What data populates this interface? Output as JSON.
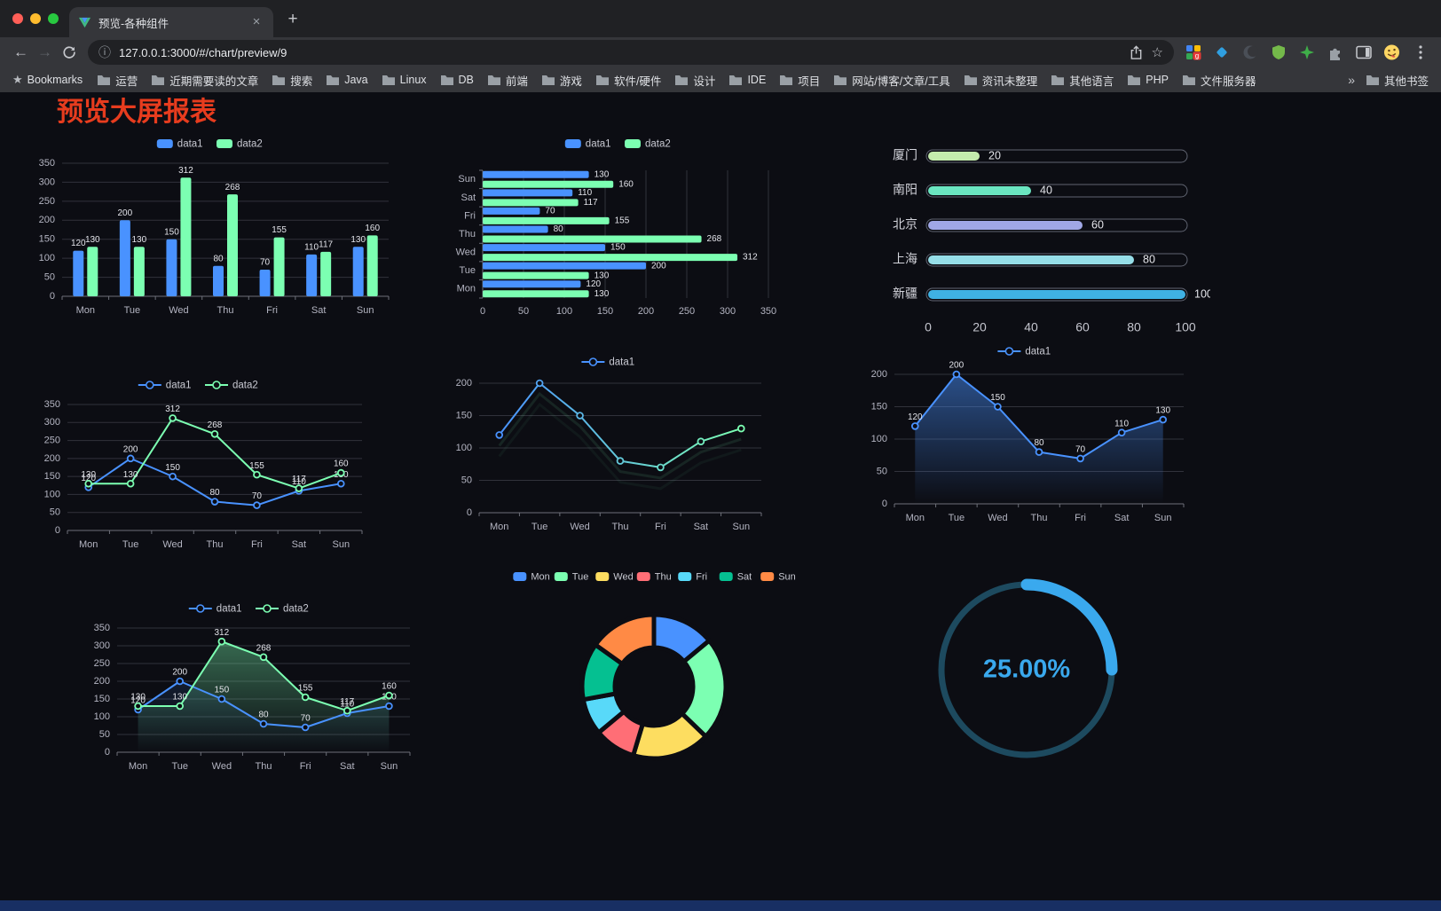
{
  "browser": {
    "tab": {
      "title": "预览-各种组件"
    },
    "address": {
      "url": "127.0.0.1:3000/#/chart/preview/9"
    },
    "icons": {
      "back": "←",
      "forward": "→",
      "info": "ⓘ",
      "star": "☆",
      "close_tab": "×",
      "new_tab": "+",
      "bookmarks_star": "★",
      "overflow": "»"
    },
    "bookmarks": {
      "label": "Bookmarks",
      "items": [
        "运营",
        "近期需要读的文章",
        "搜索",
        "Java",
        "Linux",
        "DB",
        "前端",
        "游戏",
        "软件/硬件",
        "设计",
        "IDE",
        "项目",
        "网站/博客/文章/工具",
        "资讯未整理",
        "其他语言",
        "PHP",
        "文件服务器"
      ],
      "overflow": "»",
      "other": "其他书签"
    }
  },
  "page": {
    "title": "预览大屏报表"
  },
  "colors": {
    "palette": [
      "#4992ff",
      "#7cffb2",
      "#fddd60",
      "#ff6e76",
      "#58d9f9",
      "#05c091",
      "#ff8a45"
    ],
    "title_red": "#e73c1e",
    "background": "#0c0d13"
  },
  "chart_data": [
    {
      "id": "bar-vertical",
      "type": "bar",
      "legend": [
        "data1",
        "data2"
      ],
      "categories": [
        "Mon",
        "Tue",
        "Wed",
        "Thu",
        "Fri",
        "Sat",
        "Sun"
      ],
      "series": [
        {
          "name": "data1",
          "color": "#4992ff",
          "values": [
            120,
            200,
            150,
            80,
            70,
            110,
            130
          ]
        },
        {
          "name": "data2",
          "color": "#7cffb2",
          "values": [
            130,
            130,
            312,
            268,
            155,
            117,
            160
          ]
        }
      ],
      "ylim": [
        0,
        350
      ],
      "yticks": [
        0,
        50,
        100,
        150,
        200,
        250,
        300,
        350
      ],
      "value_labels": true
    },
    {
      "id": "bar-horizontal",
      "type": "hbar",
      "legend": [
        "data1",
        "data2"
      ],
      "categories": [
        "Mon",
        "Tue",
        "Wed",
        "Thu",
        "Fri",
        "Sat",
        "Sun"
      ],
      "series": [
        {
          "name": "data1",
          "color": "#4992ff",
          "values": [
            120,
            200,
            150,
            80,
            70,
            110,
            130
          ]
        },
        {
          "name": "data2",
          "color": "#7cffb2",
          "values": [
            130,
            130,
            312,
            268,
            155,
            117,
            160
          ]
        }
      ],
      "xlim": [
        0,
        350
      ],
      "xticks": [
        0,
        50,
        100,
        150,
        200,
        250,
        300,
        350
      ],
      "value_labels": true
    },
    {
      "id": "capsule-bars",
      "type": "capsule",
      "rows": [
        {
          "label": "厦门",
          "value": 20,
          "color": "#c4ebad"
        },
        {
          "label": "南阳",
          "value": 40,
          "color": "#6be6c1"
        },
        {
          "label": "北京",
          "value": 60,
          "color": "#a0a7e6"
        },
        {
          "label": "上海",
          "value": 80,
          "color": "#96dee8"
        },
        {
          "label": "新疆",
          "value": 100,
          "color": "#3fb1e3"
        }
      ],
      "xlim": [
        0,
        100
      ],
      "xticks": [
        0,
        20,
        40,
        60,
        80,
        100
      ]
    },
    {
      "id": "line-two-series",
      "type": "line",
      "legend": [
        "data1",
        "data2"
      ],
      "categories": [
        "Mon",
        "Tue",
        "Wed",
        "Thu",
        "Fri",
        "Sat",
        "Sun"
      ],
      "series": [
        {
          "name": "data1",
          "color": "#4992ff",
          "values": [
            120,
            200,
            150,
            80,
            70,
            110,
            130
          ]
        },
        {
          "name": "data2",
          "color": "#7cffb2",
          "values": [
            130,
            130,
            312,
            268,
            155,
            117,
            160
          ]
        }
      ],
      "ylim": [
        0,
        350
      ],
      "yticks": [
        0,
        50,
        100,
        150,
        200,
        250,
        300,
        350
      ],
      "value_labels": true
    },
    {
      "id": "line-gradient",
      "type": "line",
      "legend": [
        "data1"
      ],
      "categories": [
        "Mon",
        "Tue",
        "Wed",
        "Thu",
        "Fri",
        "Sat",
        "Sun"
      ],
      "series": [
        {
          "name": "data1",
          "gradient": [
            "#4992ff",
            "#7cffb2"
          ],
          "values": [
            120,
            200,
            150,
            80,
            70,
            110,
            130
          ]
        }
      ],
      "ylim": [
        0,
        200
      ],
      "yticks": [
        0,
        50,
        100,
        150,
        200
      ],
      "value_labels": false
    },
    {
      "id": "line-area",
      "type": "line",
      "legend": [
        "data1"
      ],
      "categories": [
        "Mon",
        "Tue",
        "Wed",
        "Thu",
        "Fri",
        "Sat",
        "Sun"
      ],
      "series": [
        {
          "name": "data1",
          "color": "#4992ff",
          "values": [
            120,
            200,
            150,
            80,
            70,
            110,
            130
          ],
          "area": 0.5
        }
      ],
      "ylim": [
        0,
        200
      ],
      "yticks": [
        0,
        50,
        100,
        150,
        200
      ],
      "value_labels": true
    },
    {
      "id": "line-two-area",
      "type": "line",
      "legend": [
        "data1",
        "data2"
      ],
      "categories": [
        "Mon",
        "Tue",
        "Wed",
        "Thu",
        "Fri",
        "Sat",
        "Sun"
      ],
      "series": [
        {
          "name": "data1",
          "color": "#4992ff",
          "values": [
            120,
            200,
            150,
            80,
            70,
            110,
            130
          ],
          "area": 0.12
        },
        {
          "name": "data2",
          "color": "#7cffb2",
          "values": [
            130,
            130,
            312,
            268,
            155,
            117,
            160
          ],
          "area": 0.38
        }
      ],
      "ylim": [
        0,
        350
      ],
      "yticks": [
        0,
        50,
        100,
        150,
        200,
        250,
        300,
        350
      ],
      "value_labels": true
    },
    {
      "id": "donut",
      "type": "donut",
      "legend": [
        "Mon",
        "Tue",
        "Wed",
        "Thu",
        "Fri",
        "Sat",
        "Sun"
      ],
      "values": [
        120,
        200,
        150,
        80,
        70,
        110,
        130
      ],
      "colors": [
        "#4992ff",
        "#7cffb2",
        "#fddd60",
        "#ff6e76",
        "#58d9f9",
        "#05c091",
        "#ff8a45"
      ]
    },
    {
      "id": "gauge",
      "type": "gauge",
      "value": 25,
      "display": "25.00%",
      "color": "#3aa9ee",
      "track_color": "#1d4a5f"
    }
  ]
}
